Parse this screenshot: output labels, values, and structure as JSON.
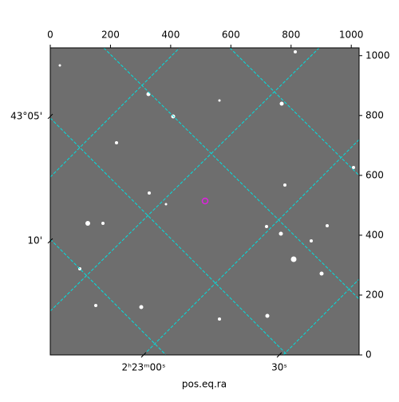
{
  "chart_data": {
    "type": "image",
    "xlabel": "pos.eq.ra",
    "xlim": [
      0,
      1026
    ],
    "ylim": [
      0,
      1026
    ],
    "xticks": [
      0,
      200,
      400,
      600,
      800,
      1000
    ],
    "yticks": [
      0,
      200,
      400,
      600,
      800,
      1000
    ],
    "ra_ticks": [
      {
        "value": 310,
        "label": "2ʰ23ᵐ00ˢ"
      },
      {
        "value": 761,
        "label": "30ˢ"
      }
    ],
    "dec_ticks": [
      {
        "value": 797,
        "label": "43°05'"
      },
      {
        "value": 381,
        "label": "10'"
      }
    ]
  }
}
